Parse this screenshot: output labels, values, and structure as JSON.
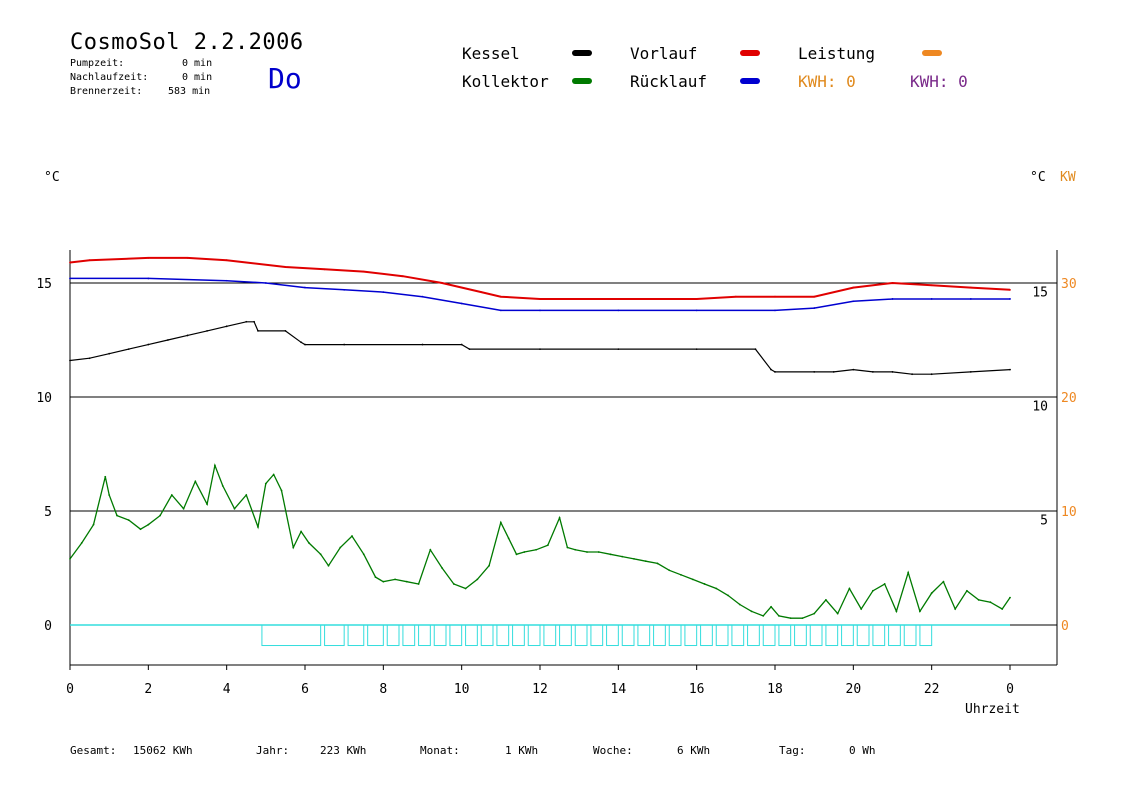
{
  "header": {
    "title": "CosmoSol 2.2.2006",
    "day": "Do",
    "pumpzeit_label": "Pumpzeit:",
    "pumpzeit_value": "0 min",
    "nachlaufzeit_label": "Nachlaufzeit:",
    "nachlaufzeit_value": "0 min",
    "brennerzeit_label": "Brennerzeit:",
    "brennerzeit_value": "583 min"
  },
  "legend": {
    "kessel": "Kessel",
    "kollektor": "Kollektor",
    "vorlauf": "Vorlauf",
    "ruecklauf": "Rücklauf",
    "leistung": "Leistung",
    "kwh_orange": "KWH: 0",
    "kwh_purple": "KWH: 0"
  },
  "colors": {
    "kessel": "#000000",
    "kollektor": "#007a00",
    "vorlauf": "#e00000",
    "ruecklauf": "#0000d0",
    "leistung": "#ee8822",
    "pump": "#33dddd",
    "kwh_purple": "#7a2a8a"
  },
  "axes": {
    "left_unit": "°C",
    "right_unit": "°C",
    "right_unit_kw": "KW",
    "x_label": "Uhrzeit"
  },
  "footer": {
    "gesamt_label": "Gesamt:",
    "gesamt_value": "15062 KWh",
    "jahr_label": "Jahr:",
    "jahr_value": "223 KWh",
    "monat_label": "Monat:",
    "monat_value": "1 KWh",
    "woche_label": "Woche:",
    "woche_value": "6 KWh",
    "tag_label": "Tag:",
    "tag_value": "0 Wh"
  },
  "chart_data": {
    "type": "line",
    "xlim": [
      0,
      24
    ],
    "ylim_lower": [
      -1.5,
      10
    ],
    "ylim_upper": [
      10,
      16.5
    ],
    "x_ticks": [
      "0",
      "2",
      "4",
      "6",
      "8",
      "10",
      "12",
      "14",
      "16",
      "18",
      "20",
      "22",
      "0"
    ],
    "y_left_ticks": [
      {
        "v": 0,
        "label": "0"
      },
      {
        "v": 5,
        "label": "5"
      },
      {
        "v": 10,
        "label": "10"
      },
      {
        "v": 15,
        "label": "15"
      }
    ],
    "y_right_ticks": [
      {
        "v": 4.5,
        "label": "5"
      },
      {
        "v": 9.5,
        "label": "10"
      },
      {
        "v": 14.5,
        "label": "15"
      }
    ],
    "y_kw_ticks": [
      {
        "v": 0,
        "label": "0"
      },
      {
        "v": 5,
        "label": "10"
      },
      {
        "v": 10,
        "label": "20"
      },
      {
        "v": 15,
        "label": "30"
      }
    ],
    "gridlines": [
      0,
      5,
      10,
      15
    ],
    "series": [
      {
        "name": "Vorlauf",
        "color_key": "vorlauf",
        "x": [
          0,
          0.5,
          2,
          3,
          4,
          4.5,
          5.5,
          6.5,
          7.5,
          8.5,
          9.5,
          10.5,
          11,
          12,
          13,
          14,
          15,
          16,
          17,
          18,
          19,
          20,
          21,
          22,
          23,
          24
        ],
        "y": [
          15.9,
          16.0,
          16.1,
          16.1,
          16.0,
          15.9,
          15.7,
          15.6,
          15.5,
          15.3,
          15.0,
          14.6,
          14.4,
          14.3,
          14.3,
          14.3,
          14.3,
          14.3,
          14.4,
          14.4,
          14.4,
          14.8,
          15.0,
          14.9,
          14.8,
          14.7
        ]
      },
      {
        "name": "Rücklauf",
        "color_key": "ruecklauf",
        "x": [
          0,
          2,
          4,
          5,
          6,
          7,
          8,
          9,
          10,
          11,
          12,
          14,
          16,
          18,
          19,
          20,
          21,
          22,
          23,
          24
        ],
        "y": [
          15.2,
          15.2,
          15.1,
          15.0,
          14.8,
          14.7,
          14.6,
          14.4,
          14.1,
          13.8,
          13.8,
          13.8,
          13.8,
          13.8,
          13.9,
          14.2,
          14.3,
          14.3,
          14.3,
          14.3
        ]
      },
      {
        "name": "Kessel",
        "color_key": "kessel",
        "x": [
          0,
          0.5,
          1,
          1.5,
          2,
          2.5,
          3,
          3.5,
          4,
          4.5,
          4.7,
          4.8,
          5.5,
          5.9,
          6,
          7,
          9,
          10,
          10.2,
          12,
          14,
          16,
          17.5,
          17.9,
          18,
          19,
          19.5,
          20,
          20.5,
          21,
          21.5,
          22,
          23,
          24
        ],
        "y": [
          11.6,
          11.7,
          11.9,
          12.1,
          12.3,
          12.5,
          12.7,
          12.9,
          13.1,
          13.3,
          13.3,
          12.9,
          12.9,
          12.4,
          12.3,
          12.3,
          12.3,
          12.3,
          12.1,
          12.1,
          12.1,
          12.1,
          12.1,
          11.2,
          11.1,
          11.1,
          11.1,
          11.2,
          11.1,
          11.1,
          11.0,
          11.0,
          11.1,
          11.2
        ]
      },
      {
        "name": "Kollektor",
        "color_key": "kollektor",
        "x": [
          0,
          0.3,
          0.6,
          0.9,
          1.0,
          1.2,
          1.5,
          1.8,
          2.0,
          2.3,
          2.6,
          2.9,
          3.2,
          3.5,
          3.7,
          3.9,
          4.2,
          4.5,
          4.8,
          5.0,
          5.2,
          5.4,
          5.7,
          5.9,
          6.1,
          6.4,
          6.6,
          6.9,
          7.2,
          7.5,
          7.8,
          8.0,
          8.3,
          8.6,
          8.9,
          9.2,
          9.5,
          9.8,
          10.1,
          10.4,
          10.7,
          11.0,
          11.2,
          11.4,
          11.6,
          11.9,
          12.2,
          12.5,
          12.7,
          12.9,
          13.2,
          13.5,
          13.8,
          14.1,
          14.4,
          14.7,
          15.0,
          15.3,
          15.6,
          15.9,
          16.2,
          16.5,
          16.8,
          17.1,
          17.4,
          17.7,
          17.9,
          18.1,
          18.4,
          18.7,
          19.0,
          19.3,
          19.6,
          19.9,
          20.2,
          20.5,
          20.8,
          21.1,
          21.4,
          21.7,
          22.0,
          22.3,
          22.6,
          22.9,
          23.2,
          23.5,
          23.8,
          24.0
        ],
        "y": [
          2.9,
          3.6,
          4.4,
          6.5,
          5.7,
          4.8,
          4.6,
          4.2,
          4.4,
          4.8,
          5.7,
          5.1,
          6.3,
          5.3,
          7.0,
          6.1,
          5.1,
          5.7,
          4.3,
          6.2,
          6.6,
          5.9,
          3.4,
          4.1,
          3.6,
          3.1,
          2.6,
          3.4,
          3.9,
          3.1,
          2.1,
          1.9,
          2.0,
          1.9,
          1.8,
          3.3,
          2.5,
          1.8,
          1.6,
          2.0,
          2.6,
          4.5,
          3.8,
          3.1,
          3.2,
          3.3,
          3.5,
          4.7,
          3.4,
          3.3,
          3.2,
          3.2,
          3.1,
          3.0,
          2.9,
          2.8,
          2.7,
          2.4,
          2.2,
          2.0,
          1.8,
          1.6,
          1.3,
          0.9,
          0.6,
          0.4,
          0.8,
          0.4,
          0.3,
          0.3,
          0.5,
          1.1,
          0.5,
          1.6,
          0.7,
          1.5,
          1.8,
          0.6,
          2.3,
          0.6,
          1.4,
          1.9,
          0.7,
          1.5,
          1.1,
          1.0,
          0.7,
          1.2
        ]
      }
    ],
    "pump": {
      "name": "Pumpe",
      "color_key": "pump",
      "baseline": 0,
      "segments": [
        [
          4.9,
          6.4
        ],
        [
          6.5,
          7.0
        ],
        [
          7.1,
          7.5
        ],
        [
          7.6,
          8.0
        ],
        [
          8.1,
          8.4
        ],
        [
          8.5,
          8.8
        ],
        [
          8.9,
          9.2
        ],
        [
          9.3,
          9.6
        ],
        [
          9.7,
          10.0
        ],
        [
          10.1,
          10.4
        ],
        [
          10.5,
          10.8
        ],
        [
          10.9,
          11.2
        ],
        [
          11.3,
          11.6
        ],
        [
          11.7,
          12.0
        ],
        [
          12.1,
          12.4
        ],
        [
          12.5,
          12.8
        ],
        [
          12.9,
          13.2
        ],
        [
          13.3,
          13.6
        ],
        [
          13.7,
          14.0
        ],
        [
          14.1,
          14.4
        ],
        [
          14.5,
          14.8
        ],
        [
          14.9,
          15.2
        ],
        [
          15.3,
          15.6
        ],
        [
          15.7,
          16.0
        ],
        [
          16.1,
          16.4
        ],
        [
          16.5,
          16.8
        ],
        [
          16.9,
          17.2
        ],
        [
          17.3,
          17.6
        ],
        [
          17.7,
          18.0
        ],
        [
          18.1,
          18.4
        ],
        [
          18.5,
          18.8
        ],
        [
          18.9,
          19.2
        ],
        [
          19.3,
          19.6
        ],
        [
          19.7,
          20.0
        ],
        [
          20.1,
          20.4
        ],
        [
          20.5,
          20.8
        ],
        [
          20.9,
          21.2
        ],
        [
          21.3,
          21.6
        ],
        [
          21.7,
          22.0
        ]
      ],
      "height": -0.9
    }
  }
}
